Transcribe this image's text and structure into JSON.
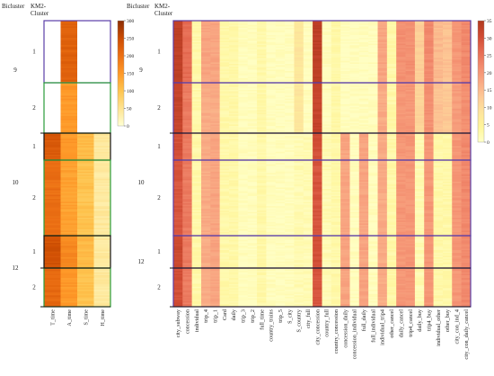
{
  "chart_data": [
    {
      "type": "heatmap",
      "title": "",
      "header_labels": [
        "Bicluster",
        "KM2-",
        "Cluster"
      ],
      "columns": [
        "T_time",
        "A_time",
        "S_time",
        "H_time"
      ],
      "colorbar_ticks": [
        0,
        50,
        100,
        150,
        200,
        250,
        300
      ],
      "colorbar_range": [
        0,
        300
      ],
      "colormap": [
        "#ffffd4",
        "#fee391",
        "#fec44f",
        "#fe9929",
        "#ec7014",
        "#cc4c02",
        "#8c2d04"
      ],
      "biclusters": [
        {
          "label": "9",
          "km2_clusters": [
            "1",
            "2"
          ],
          "empty": false
        },
        {
          "label": "10",
          "km2_clusters": [
            "1",
            "2"
          ],
          "empty": false
        },
        {
          "label": "12",
          "km2_clusters": [
            "1",
            "2"
          ],
          "empty": false
        }
      ],
      "column_means": [
        {
          "bicluster": "9",
          "cluster": "1",
          "values": [
            null,
            220,
            null,
            null
          ]
        },
        {
          "bicluster": "9",
          "cluster": "2",
          "values": [
            null,
            150,
            null,
            null
          ]
        },
        {
          "bicluster": "10",
          "cluster": "1",
          "values": [
            230,
            150,
            110,
            40
          ]
        },
        {
          "bicluster": "10",
          "cluster": "2",
          "values": [
            200,
            140,
            100,
            40
          ]
        },
        {
          "bicluster": "12",
          "cluster": "1",
          "values": [
            240,
            170,
            110,
            40
          ]
        },
        {
          "bicluster": "12",
          "cluster": "2",
          "values": [
            210,
            150,
            100,
            40
          ]
        }
      ]
    },
    {
      "type": "heatmap",
      "title": "",
      "header_labels": [
        "Bicluster",
        "KM2-",
        "Cluster"
      ],
      "columns": [
        "city_subway",
        "concession",
        "individual",
        "trip_4",
        "trip_1",
        "Card",
        "daily",
        "trip_3",
        "trip_2",
        "full_time",
        "country_trains",
        "trip_5",
        "S_city",
        "S_country",
        "city_full",
        "city_concession",
        "country_full",
        "country_concession",
        "concession_daily",
        "concession_individual",
        "full_daily",
        "full_individual",
        "individual_trip4",
        "other_cancel",
        "daily_cancel",
        "trip4_cancel",
        "daily_buy",
        "trip4_buy",
        "individual_other",
        "other_buy",
        "city_con_ind_4",
        "city_con_daily_cancel"
      ],
      "colorbar_ticks": [
        0,
        5,
        10,
        15,
        20,
        25,
        30,
        35
      ],
      "colorbar_range": [
        0,
        35
      ],
      "colormap": [
        "#ffffc8",
        "#fff59a",
        "#fde39c",
        "#fdc896",
        "#f9a883",
        "#f28b6e",
        "#e56b52",
        "#cf4a32",
        "#b13a1e"
      ],
      "biclusters": [
        {
          "label": "9",
          "km2_clusters": [
            "1",
            "2"
          ]
        },
        {
          "label": "10",
          "km2_clusters": [
            "1",
            "2"
          ]
        },
        {
          "label": "12",
          "km2_clusters": [
            "1",
            "2"
          ]
        }
      ],
      "column_means": [
        {
          "bicluster": "9",
          "cluster": "1",
          "values": [
            33,
            26,
            3,
            18,
            18,
            3,
            3,
            1,
            1,
            3,
            1,
            1,
            1,
            8,
            1,
            33,
            1,
            3,
            1,
            1,
            1,
            1,
            18,
            3,
            21,
            21,
            12,
            22,
            15,
            14,
            20,
            22
          ]
        },
        {
          "bicluster": "9",
          "cluster": "2",
          "values": [
            32,
            24,
            3,
            17,
            17,
            3,
            3,
            1,
            1,
            3,
            1,
            1,
            1,
            8,
            1,
            32,
            1,
            3,
            1,
            1,
            1,
            1,
            17,
            3,
            20,
            20,
            11,
            21,
            14,
            13,
            19,
            21
          ]
        },
        {
          "bicluster": "10",
          "cluster": "1",
          "values": [
            30,
            24,
            3,
            17,
            18,
            3,
            3,
            1,
            1,
            3,
            1,
            1,
            1,
            2,
            2,
            30,
            2,
            3,
            18,
            1,
            18,
            1,
            17,
            3,
            20,
            20,
            2,
            20,
            3,
            3,
            20,
            22
          ]
        },
        {
          "bicluster": "10",
          "cluster": "2",
          "values": [
            29,
            24,
            3,
            17,
            18,
            3,
            3,
            1,
            1,
            3,
            1,
            1,
            1,
            2,
            2,
            29,
            2,
            3,
            18,
            1,
            18,
            1,
            17,
            3,
            20,
            20,
            2,
            20,
            3,
            3,
            20,
            22
          ]
        },
        {
          "bicluster": "12",
          "cluster": "1",
          "values": [
            31,
            24,
            3,
            17,
            18,
            3,
            3,
            1,
            1,
            3,
            1,
            1,
            1,
            2,
            2,
            30,
            2,
            3,
            18,
            1,
            18,
            1,
            17,
            3,
            20,
            20,
            2,
            20,
            3,
            3,
            20,
            22
          ]
        },
        {
          "bicluster": "12",
          "cluster": "2",
          "values": [
            30,
            24,
            3,
            17,
            18,
            3,
            3,
            1,
            1,
            3,
            1,
            1,
            1,
            2,
            2,
            29,
            2,
            3,
            18,
            1,
            18,
            1,
            17,
            3,
            20,
            20,
            2,
            20,
            3,
            3,
            20,
            22
          ]
        }
      ]
    }
  ]
}
